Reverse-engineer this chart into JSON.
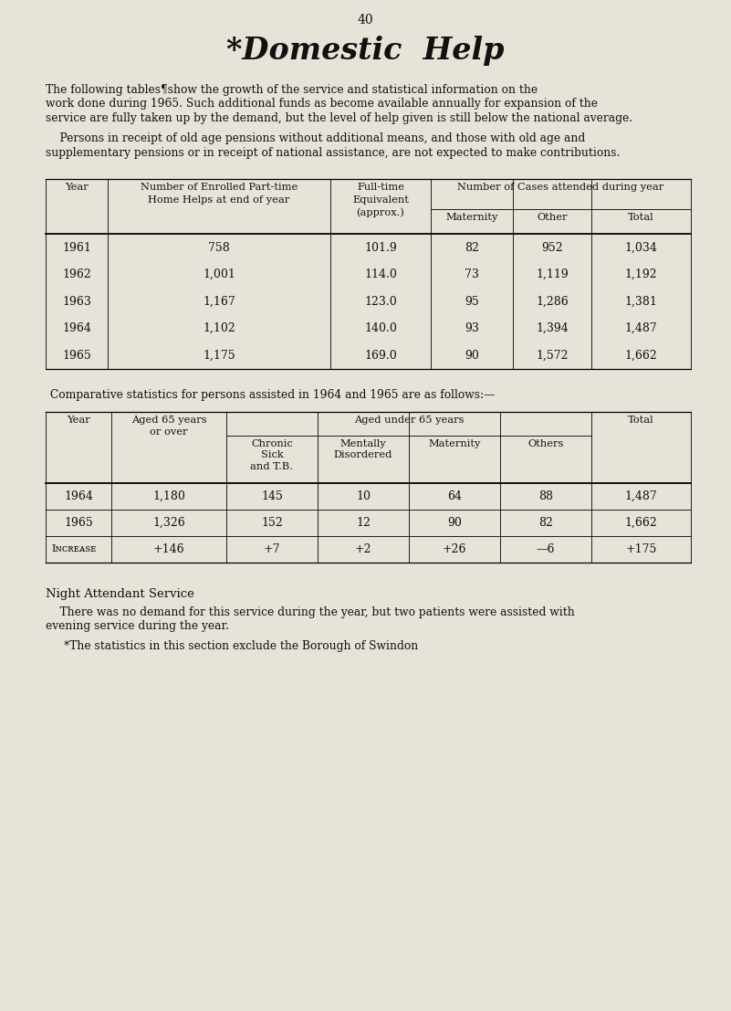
{
  "bg_color": "#e8e3d8",
  "page_number": "40",
  "title": "*Domestic  Help",
  "para1_lines": [
    "The following tables¶show the growth of the service and statistical information on the",
    "work done during 1965. Such additional funds as become available annually for expansion of the",
    "service are fully taken up by the demand, but the level of help given is still below the national average."
  ],
  "para2_lines": [
    "    Persons in receipt of old age pensions without additional means, and those with old age and",
    "supplementary pensions or in receipt of national assistance, are not expected to make contributions."
  ],
  "table1_data": [
    [
      "1961",
      "758",
      "101.9",
      "82",
      "952",
      "1,034"
    ],
    [
      "1962",
      "1,001",
      "114.0",
      "73",
      "1,119",
      "1,192"
    ],
    [
      "1963",
      "1,167",
      "123.0",
      "95",
      "1,286",
      "1,381"
    ],
    [
      "1964",
      "1,102",
      "140.0",
      "93",
      "1,394",
      "1,487"
    ],
    [
      "1965",
      "1,175",
      "169.0",
      "90",
      "1,572",
      "1,662"
    ]
  ],
  "comp_text": "Comparative statistics for persons assisted in 1964 and 1965 are as follows:—",
  "table2_data": [
    [
      "1964",
      "1,180",
      "145",
      "10",
      "64",
      "88",
      "1,487"
    ],
    [
      "1965",
      "1,326",
      "152",
      "12",
      "90",
      "82",
      "1,662"
    ],
    [
      "Iɴᴄʀᴇᴀsᴇ",
      "+146",
      "+7",
      "+2",
      "+26",
      "—6",
      "+175"
    ]
  ],
  "night_heading": "Night Attendant Service",
  "night_para_lines": [
    "    There was no demand for this service during the year, but two patients were assisted with",
    "evening service during the year."
  ],
  "footnote": "*The statistics in this section exclude the Borough of Swindon",
  "text_color": "#111111"
}
